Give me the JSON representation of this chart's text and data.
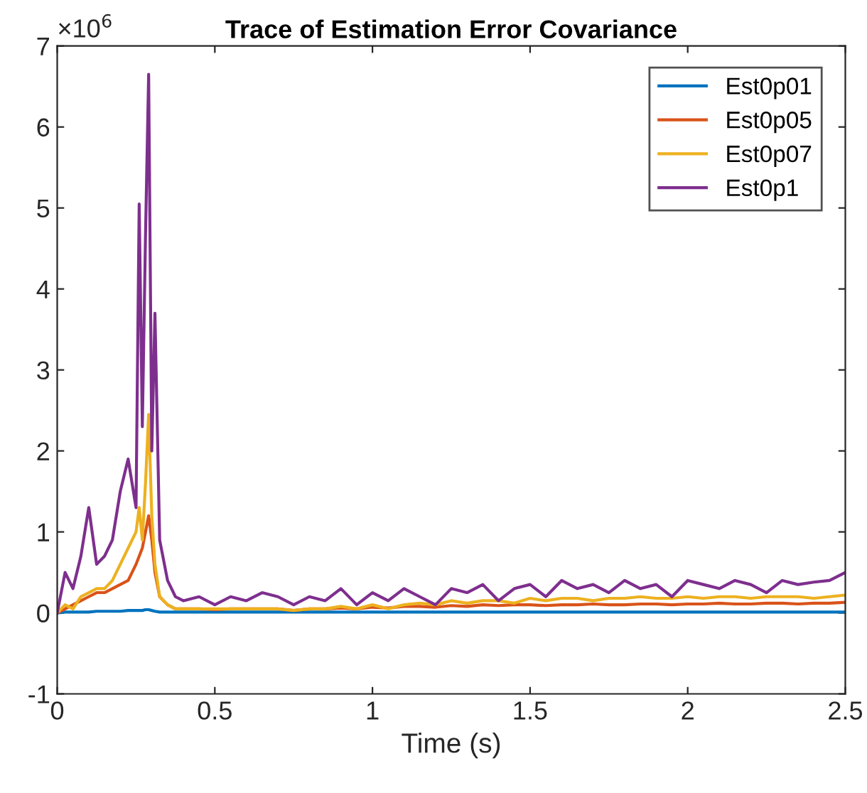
{
  "chart_data": {
    "type": "line",
    "title": "Trace of Estimation Error Covariance",
    "xlabel": "Time (s)",
    "annotations": [
      "×10$^{6}$"
    ],
    "x": [
      0,
      0.025,
      0.05,
      0.075,
      0.1,
      0.125,
      0.15,
      0.175,
      0.2,
      0.225,
      0.25,
      0.26,
      0.27,
      0.28,
      0.29,
      0.3,
      0.31,
      0.325,
      0.35,
      0.375,
      0.4,
      0.45,
      0.5,
      0.55,
      0.6,
      0.65,
      0.7,
      0.75,
      0.8,
      0.85,
      0.9,
      0.95,
      1.0,
      1.05,
      1.1,
      1.15,
      1.2,
      1.25,
      1.3,
      1.35,
      1.4,
      1.45,
      1.5,
      1.55,
      1.6,
      1.65,
      1.7,
      1.75,
      1.8,
      1.85,
      1.9,
      1.95,
      2.0,
      2.05,
      2.1,
      2.15,
      2.2,
      2.25,
      2.3,
      2.35,
      2.4,
      2.45,
      2.5
    ],
    "series": [
      {
        "name": "Est0p01",
        "color": "#0072bd",
        "values": [
          0,
          0.01,
          0.01,
          0.01,
          0.01,
          0.02,
          0.02,
          0.02,
          0.02,
          0.03,
          0.03,
          0.03,
          0.03,
          0.04,
          0.04,
          0.03,
          0.02,
          0.01,
          0.01,
          0.01,
          0.01,
          0.01,
          0.01,
          0.01,
          0.01,
          0.01,
          0.01,
          0.01,
          0.01,
          0.01,
          0.01,
          0.01,
          0.01,
          0.01,
          0.01,
          0.01,
          0.01,
          0.01,
          0.01,
          0.01,
          0.01,
          0.01,
          0.01,
          0.01,
          0.01,
          0.01,
          0.01,
          0.01,
          0.01,
          0.01,
          0.01,
          0.01,
          0.01,
          0.01,
          0.01,
          0.01,
          0.01,
          0.01,
          0.01,
          0.01,
          0.01,
          0.01,
          0.01
        ]
      },
      {
        "name": "Est0p05",
        "color": "#d95319",
        "values": [
          0,
          0.05,
          0.1,
          0.15,
          0.2,
          0.25,
          0.25,
          0.3,
          0.35,
          0.4,
          0.6,
          0.7,
          0.8,
          1.0,
          1.2,
          0.9,
          0.5,
          0.2,
          0.1,
          0.05,
          0.05,
          0.05,
          0.04,
          0.05,
          0.05,
          0.05,
          0.05,
          0.03,
          0.05,
          0.05,
          0.06,
          0.05,
          0.07,
          0.06,
          0.08,
          0.08,
          0.07,
          0.09,
          0.08,
          0.1,
          0.09,
          0.1,
          0.1,
          0.09,
          0.1,
          0.1,
          0.11,
          0.1,
          0.1,
          0.11,
          0.11,
          0.1,
          0.11,
          0.11,
          0.12,
          0.11,
          0.11,
          0.12,
          0.12,
          0.11,
          0.12,
          0.12,
          0.13
        ]
      },
      {
        "name": "Est0p07",
        "color": "#edb120",
        "values": [
          0,
          0.1,
          0.05,
          0.2,
          0.25,
          0.3,
          0.3,
          0.4,
          0.6,
          0.8,
          1.0,
          1.3,
          0.9,
          1.6,
          2.45,
          1.2,
          0.6,
          0.2,
          0.1,
          0.05,
          0.05,
          0.05,
          0.05,
          0.05,
          0.05,
          0.05,
          0.05,
          0.03,
          0.05,
          0.05,
          0.08,
          0.05,
          0.1,
          0.05,
          0.1,
          0.12,
          0.1,
          0.15,
          0.12,
          0.15,
          0.15,
          0.12,
          0.18,
          0.15,
          0.18,
          0.18,
          0.15,
          0.18,
          0.18,
          0.2,
          0.18,
          0.18,
          0.2,
          0.18,
          0.2,
          0.2,
          0.18,
          0.2,
          0.2,
          0.2,
          0.18,
          0.2,
          0.22
        ]
      },
      {
        "name": "Est0p1",
        "color": "#7e2f8e",
        "values": [
          0,
          0.5,
          0.3,
          0.7,
          1.3,
          0.6,
          0.7,
          0.9,
          1.5,
          1.9,
          1.3,
          5.05,
          2.3,
          4.65,
          6.65,
          2.0,
          3.7,
          0.9,
          0.4,
          0.2,
          0.15,
          0.2,
          0.1,
          0.2,
          0.15,
          0.25,
          0.2,
          0.1,
          0.2,
          0.15,
          0.3,
          0.1,
          0.25,
          0.15,
          0.3,
          0.2,
          0.1,
          0.3,
          0.25,
          0.35,
          0.15,
          0.3,
          0.35,
          0.2,
          0.4,
          0.3,
          0.35,
          0.25,
          0.4,
          0.3,
          0.35,
          0.2,
          0.4,
          0.35,
          0.3,
          0.4,
          0.35,
          0.25,
          0.4,
          0.35,
          0.38,
          0.4,
          0.5
        ]
      }
    ],
    "xlim": [
      0,
      2.5
    ],
    "xticks": [
      0,
      0.5,
      1,
      1.5,
      2,
      2.5
    ],
    "ylim": [
      -1,
      7
    ],
    "yticks": [
      -1,
      0,
      1,
      2,
      3,
      4,
      5,
      6,
      7
    ],
    "legend": "top right",
    "grid": false
  }
}
